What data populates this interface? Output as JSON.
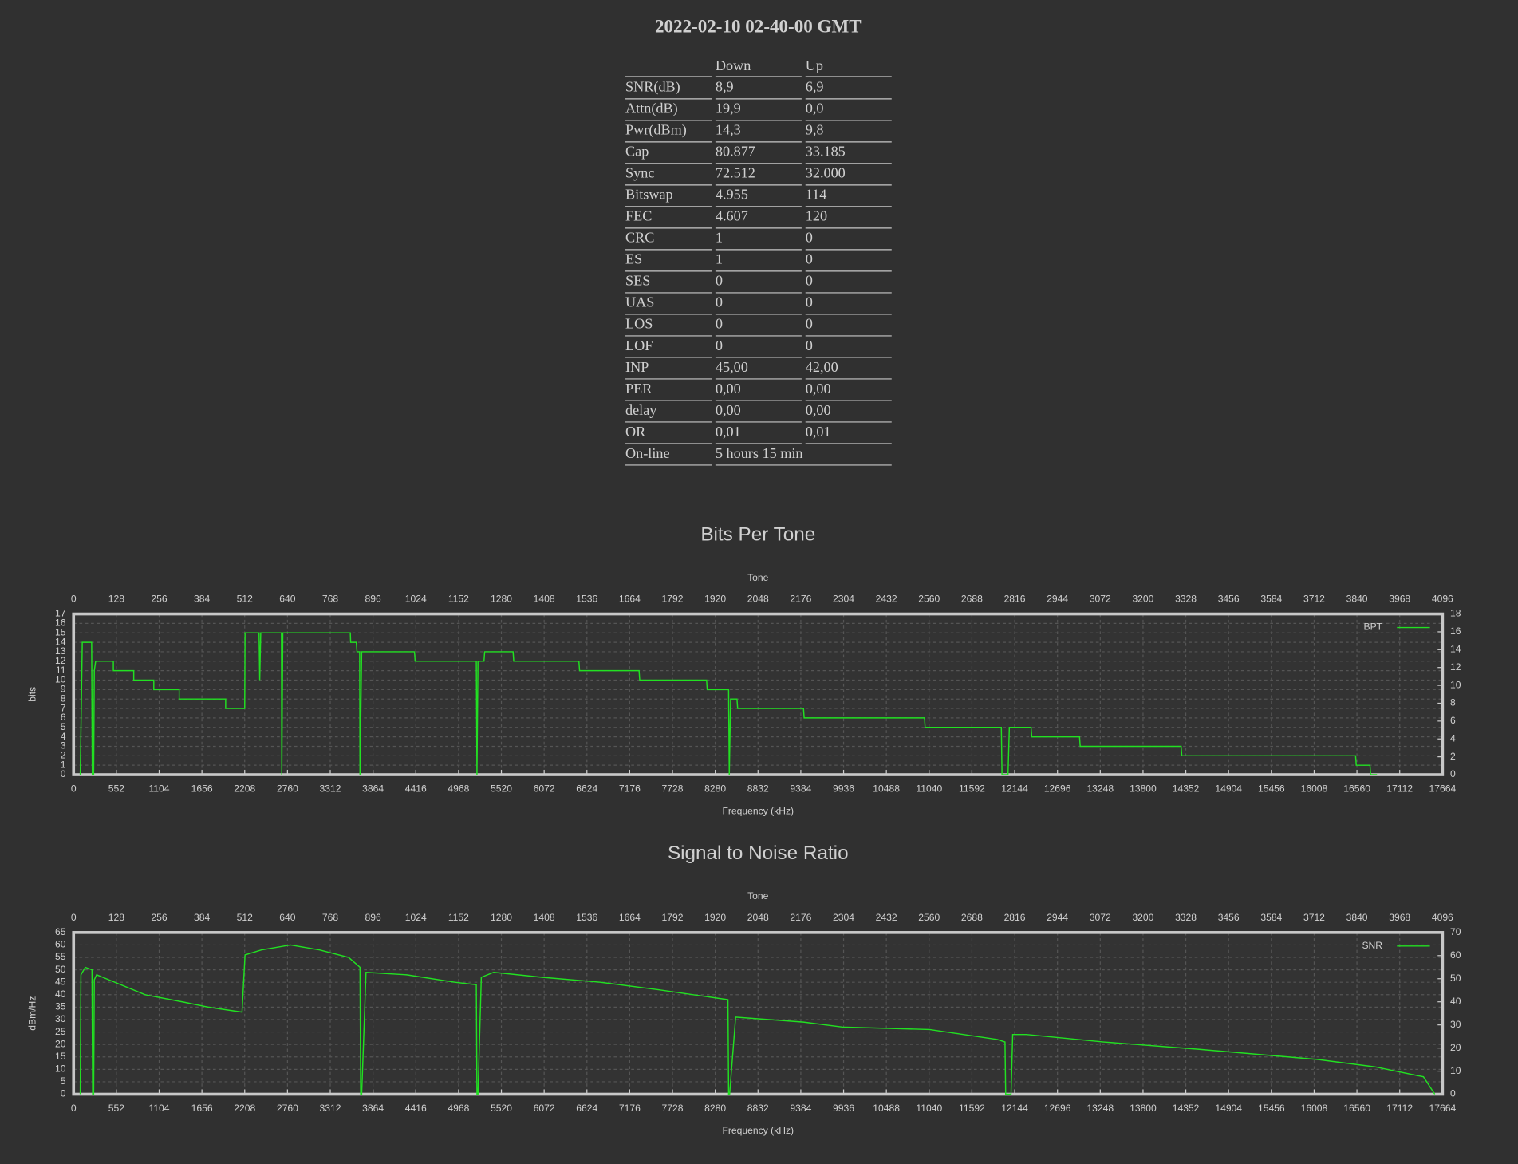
{
  "header": {
    "title": "2022-02-10 02-40-00 GMT"
  },
  "table": {
    "columns": [
      "Down",
      "Up"
    ],
    "rows": [
      [
        "SNR(dB)",
        "8,9",
        "6,9"
      ],
      [
        "Attn(dB)",
        "19,9",
        "0,0"
      ],
      [
        "Pwr(dBm)",
        "14,3",
        "9,8"
      ],
      [
        "Cap",
        "80.877",
        "33.185"
      ],
      [
        "Sync",
        "72.512",
        "32.000"
      ],
      [
        "Bitswap",
        "4.955",
        "114"
      ],
      [
        "FEC",
        "4.607",
        "120"
      ],
      [
        "CRC",
        "1",
        "0"
      ],
      [
        "ES",
        "1",
        "0"
      ],
      [
        "SES",
        "0",
        "0"
      ],
      [
        "UAS",
        "0",
        "0"
      ],
      [
        "LOS",
        "0",
        "0"
      ],
      [
        "LOF",
        "0",
        "0"
      ],
      [
        "INP",
        "45,00",
        "42,00"
      ],
      [
        "PER",
        "0,00",
        "0,00"
      ],
      [
        "delay",
        "0,00",
        "0,00"
      ],
      [
        "OR",
        "0,01",
        "0,01"
      ],
      [
        "On-line",
        "5 hours 15 min"
      ]
    ]
  },
  "chart_data": [
    {
      "type": "line",
      "title": "Bits Per Tone",
      "x_label": "Tone",
      "x2_label": "Frequency (kHz)",
      "y_label": "bits",
      "xlim": [
        0,
        4096
      ],
      "xticks": [
        0,
        128,
        256,
        384,
        512,
        640,
        768,
        896,
        1024,
        1152,
        1280,
        1408,
        1536,
        1664,
        1792,
        1920,
        2048,
        2176,
        2304,
        2432,
        2560,
        2688,
        2816,
        2944,
        3072,
        3200,
        3328,
        3456,
        3584,
        3712,
        3840,
        3968,
        4096
      ],
      "x2lim": [
        0,
        17664
      ],
      "x2ticks": [
        0,
        552,
        1104,
        1656,
        2208,
        2760,
        3312,
        3864,
        4416,
        4968,
        5520,
        6072,
        6624,
        7176,
        7728,
        8280,
        8832,
        9384,
        9936,
        10488,
        11040,
        11592,
        12144,
        12696,
        13248,
        13800,
        14352,
        14904,
        15456,
        16008,
        16560,
        17112,
        17664
      ],
      "ylim": [
        0,
        17
      ],
      "yticks": [
        0,
        1,
        2,
        3,
        4,
        5,
        6,
        7,
        8,
        9,
        10,
        11,
        12,
        13,
        14,
        15,
        16,
        17
      ],
      "y2lim": [
        0,
        18
      ],
      "y2ticks": [
        0,
        2,
        4,
        6,
        8,
        10,
        12,
        14,
        16,
        18
      ],
      "grid": true,
      "legend": "top-right",
      "series": [
        {
          "name": "BPT",
          "color": "#22e022",
          "x": [
            20,
            26,
            54,
            56,
            60,
            62,
            66,
            119,
            119,
            180,
            180,
            240,
            240,
            316,
            316,
            455,
            455,
            512,
            513,
            555,
            557,
            560,
            622,
            623,
            626,
            828,
            829,
            846,
            848,
            856,
            857,
            862,
            1020,
            1022,
            1205,
            1207,
            1210,
            1228,
            1230,
            1315,
            1317,
            1512,
            1514,
            1692,
            1694,
            1894,
            1896,
            1960,
            1962,
            1966,
            1985,
            1987,
            2184,
            2186,
            2546,
            2548,
            2776,
            2778,
            2796,
            2800,
            2865,
            2867,
            3010,
            3012,
            3314,
            3316,
            3836,
            3838,
            3879,
            3881,
            3900
          ],
          "y": [
            0,
            14,
            14,
            0,
            0,
            11,
            12,
            12,
            11,
            11,
            10,
            10,
            9,
            9,
            8,
            8,
            7,
            7,
            15,
            15,
            10,
            15,
            15,
            0,
            15,
            15,
            14,
            14,
            13,
            13,
            0,
            13,
            13,
            12,
            12,
            0,
            12,
            12,
            13,
            13,
            12,
            12,
            11,
            11,
            10,
            10,
            9,
            9,
            0,
            8,
            8,
            7,
            7,
            6,
            6,
            5,
            5,
            0,
            0,
            5,
            5,
            4,
            4,
            3,
            3,
            2,
            2,
            1,
            1,
            0,
            0
          ]
        }
      ]
    },
    {
      "type": "line",
      "title": "Signal to Noise Ratio",
      "x_label": "Tone",
      "x2_label": "Frequency (kHz)",
      "y_label": "dBm/Hz",
      "xlim": [
        0,
        4096
      ],
      "xticks": [
        0,
        128,
        256,
        384,
        512,
        640,
        768,
        896,
        1024,
        1152,
        1280,
        1408,
        1536,
        1664,
        1792,
        1920,
        2048,
        2176,
        2304,
        2432,
        2560,
        2688,
        2816,
        2944,
        3072,
        3200,
        3328,
        3456,
        3584,
        3712,
        3840,
        3968,
        4096
      ],
      "x2lim": [
        0,
        17664
      ],
      "x2ticks": [
        0,
        552,
        1104,
        1656,
        2208,
        2760,
        3312,
        3864,
        4416,
        4968,
        5520,
        6072,
        6624,
        7176,
        7728,
        8280,
        8832,
        9384,
        9936,
        10488,
        11040,
        11592,
        12144,
        12696,
        13248,
        13800,
        14352,
        14904,
        15456,
        16008,
        16560,
        17112,
        17664
      ],
      "ylim": [
        0,
        65
      ],
      "yticks": [
        0,
        5,
        10,
        15,
        20,
        25,
        30,
        35,
        40,
        45,
        50,
        55,
        60,
        65
      ],
      "y2lim": [
        0,
        70
      ],
      "y2ticks": [
        0,
        10,
        20,
        30,
        40,
        50,
        60,
        70
      ],
      "grid": true,
      "legend": "top-right",
      "series": [
        {
          "name": "SNR",
          "color": "#22e022",
          "x": [
            20,
            22,
            35,
            55,
            57,
            60,
            62,
            69,
            214,
            330,
            403,
            504,
            513,
            562,
            649,
            736,
            823,
            857,
            859,
            862,
            875,
            997,
            1141,
            1205,
            1207,
            1210,
            1220,
            1257,
            1402,
            1576,
            1750,
            1958,
            1960,
            1963,
            1981,
            2184,
            2300,
            2561,
            2764,
            2787,
            2789,
            2805,
            2810,
            2851,
            3082,
            3372,
            3720,
            3894,
            4039,
            4073
          ],
          "y": [
            0,
            48,
            51,
            50,
            0,
            0,
            46,
            48,
            40,
            37,
            35,
            33,
            56,
            58,
            60,
            58,
            55,
            51,
            0,
            0,
            49,
            48,
            45,
            44,
            0,
            0,
            47,
            49,
            47,
            45,
            42,
            38,
            0,
            0,
            31,
            29,
            27,
            26,
            22,
            21,
            0,
            0,
            24,
            24,
            21,
            18,
            14,
            11,
            7,
            0
          ]
        }
      ]
    }
  ]
}
